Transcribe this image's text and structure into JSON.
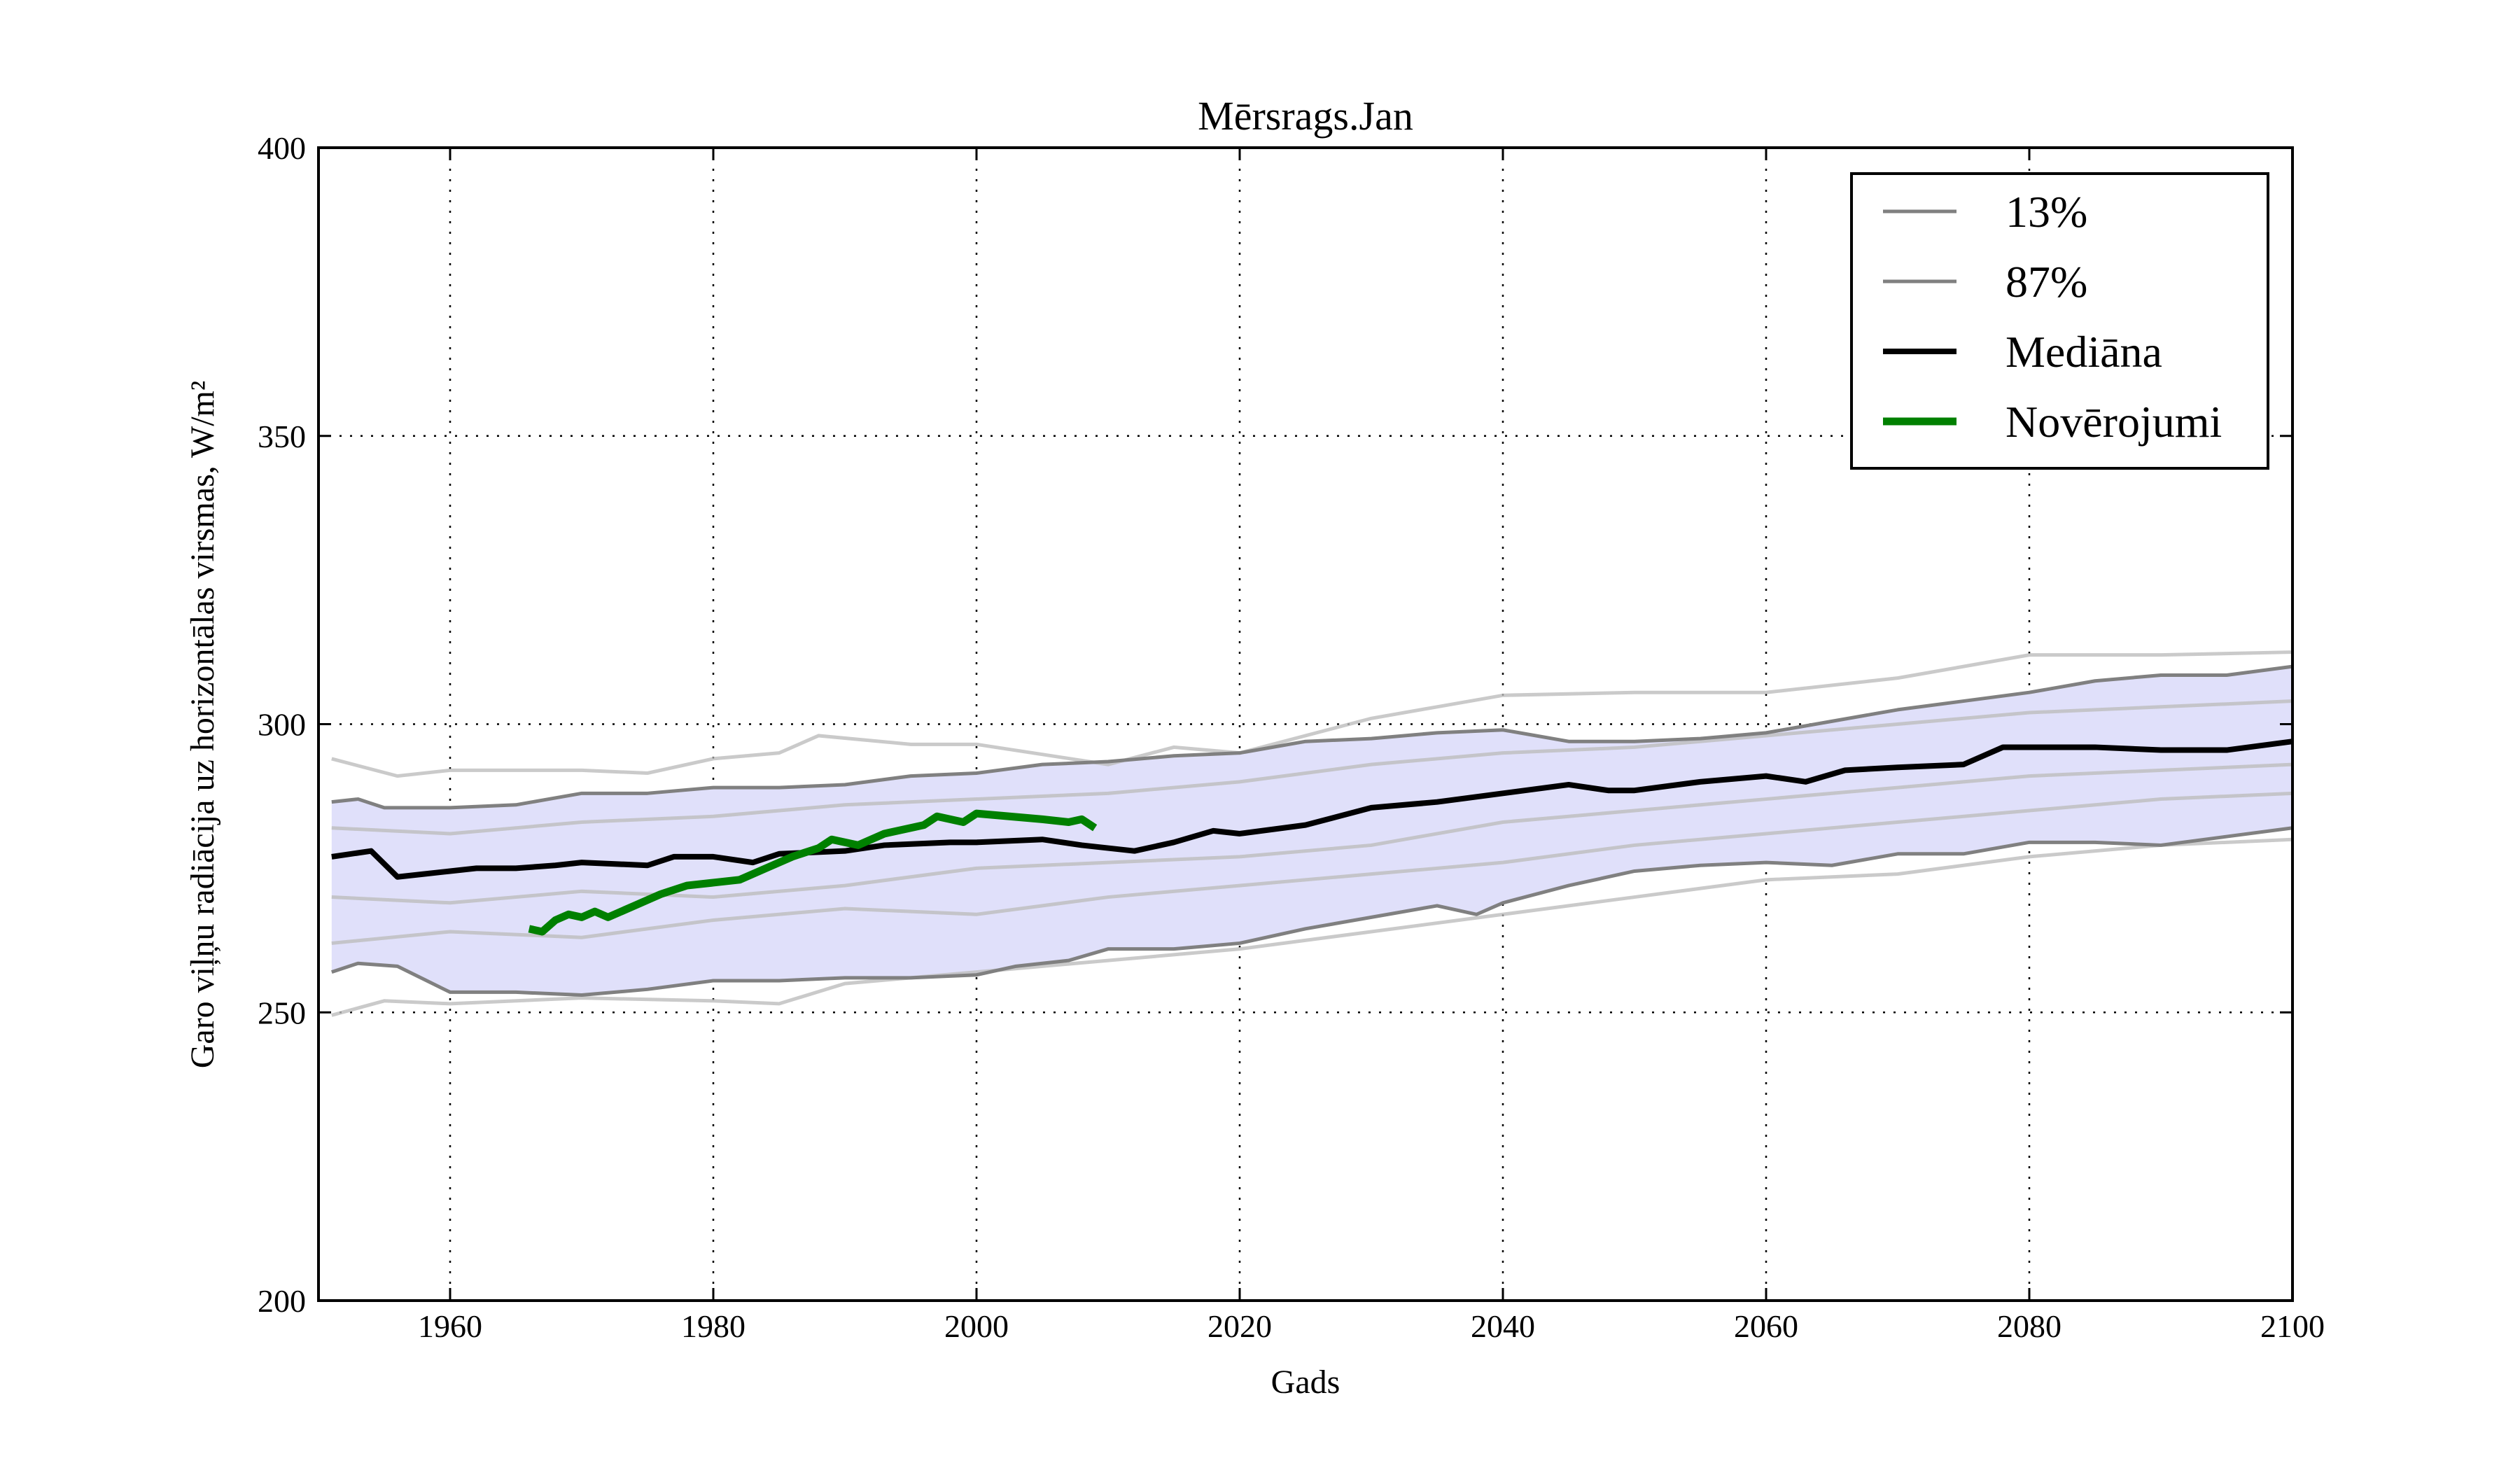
{
  "chart_data": {
    "type": "line",
    "title": "Mērsrags.Jan",
    "xlabel": "Gads",
    "ylabel": "Garo viļņu radiācija uz horizontālas virsmas, W/m²",
    "xlim": [
      1950,
      2100
    ],
    "ylim": [
      200,
      400
    ],
    "xticks": [
      1960,
      1980,
      2000,
      2020,
      2040,
      2060,
      2080,
      2100
    ],
    "yticks": [
      200,
      250,
      300,
      350,
      400
    ],
    "grid": true,
    "legend_position": "top-right",
    "colors": {
      "band": "#e0e0fa",
      "percentile": "#808080",
      "ensemble": "#bdbdbd",
      "median": "#000000",
      "observations": "#008000"
    },
    "legend": [
      {
        "label": "13%",
        "series": "p13"
      },
      {
        "label": "87%",
        "series": "p87"
      },
      {
        "label": "Mediāna",
        "series": "median"
      },
      {
        "label": "Novērojumi",
        "series": "obs"
      }
    ],
    "series": [
      {
        "id": "p13",
        "name": "13%",
        "x": [
          1951,
          1953,
          1956,
          1960,
          1965,
          1970,
          1975,
          1980,
          1985,
          1990,
          1995,
          2000,
          2003,
          2007,
          2010,
          2015,
          2020,
          2025,
          2030,
          2035,
          2038,
          2040,
          2045,
          2050,
          2055,
          2060,
          2065,
          2070,
          2075,
          2080,
          2085,
          2090,
          2095,
          2100
        ],
        "y": [
          257,
          258.5,
          258,
          253.5,
          253.5,
          253,
          254,
          255.5,
          255.5,
          256,
          256,
          256.5,
          258,
          259,
          261,
          261,
          262,
          264.5,
          266.5,
          268.5,
          267,
          269,
          272,
          274.5,
          275.5,
          276,
          275.5,
          277.5,
          277.5,
          279.5,
          279.5,
          279,
          280.5,
          282
        ]
      },
      {
        "id": "p87",
        "name": "87%",
        "x": [
          1951,
          1953,
          1955,
          1960,
          1965,
          1970,
          1975,
          1980,
          1985,
          1990,
          1995,
          2000,
          2005,
          2010,
          2015,
          2020,
          2025,
          2030,
          2035,
          2040,
          2045,
          2050,
          2055,
          2060,
          2065,
          2070,
          2075,
          2080,
          2085,
          2090,
          2095,
          2100
        ],
        "y": [
          286.5,
          287,
          285.5,
          285.5,
          286,
          288,
          288,
          289,
          289,
          289.5,
          291,
          291.5,
          293,
          293.5,
          294.5,
          295,
          297,
          297.5,
          298.5,
          299,
          297,
          297,
          297.5,
          298.5,
          300.5,
          302.5,
          304,
          305.5,
          307.5,
          308.5,
          308.5,
          310
        ]
      },
      {
        "id": "median",
        "name": "Mediāna",
        "x": [
          1951,
          1954,
          1956,
          1958,
          1960,
          1962,
          1965,
          1968,
          1970,
          1975,
          1977,
          1980,
          1983,
          1985,
          1990,
          1993,
          1998,
          2000,
          2005,
          2008,
          2010,
          2012,
          2015,
          2018,
          2020,
          2025,
          2030,
          2035,
          2040,
          2045,
          2048,
          2050,
          2055,
          2060,
          2063,
          2066,
          2070,
          2075,
          2078,
          2080,
          2085,
          2090,
          2095,
          2100
        ],
        "y": [
          277,
          278,
          273.5,
          274,
          274.5,
          275,
          275,
          275.5,
          276,
          275.5,
          277,
          277,
          276,
          277.5,
          278,
          279,
          279.5,
          279.5,
          280,
          279,
          278.5,
          278,
          279.5,
          281.5,
          281,
          282.5,
          285.5,
          286.5,
          288,
          289.5,
          288.5,
          288.5,
          290,
          291,
          290,
          292,
          292.5,
          293,
          296,
          296,
          296,
          295.5,
          295.5,
          297
        ]
      },
      {
        "id": "obs",
        "name": "Novērojumi",
        "x": [
          1966,
          1967,
          1968,
          1969,
          1970,
          1971,
          1972,
          1974,
          1976,
          1978,
          1980,
          1982,
          1984,
          1986,
          1988,
          1989,
          1991,
          1993,
          1995,
          1996,
          1997,
          1999,
          2000,
          2005,
          2007,
          2008,
          2009
        ],
        "y": [
          264.5,
          264,
          266,
          267,
          266.5,
          267.5,
          266.5,
          268.5,
          270.5,
          272,
          272.5,
          273,
          275,
          277,
          278.5,
          280,
          279,
          281,
          282,
          282.5,
          284,
          283,
          284.5,
          283.5,
          283,
          283.5,
          282
        ]
      },
      {
        "id": "ens1",
        "name": "",
        "x": [
          1951,
          1956,
          1960,
          1970,
          1975,
          1980,
          1985,
          1988,
          1995,
          2000,
          2010,
          2015,
          2020,
          2030,
          2035,
          2040,
          2050,
          2060,
          2070,
          2080,
          2090,
          2100
        ],
        "y": [
          294,
          291,
          292,
          292,
          291.5,
          294,
          295,
          298,
          296.5,
          296.5,
          293,
          296,
          295,
          301,
          303,
          305,
          305.5,
          305.5,
          308,
          312,
          312,
          312.5
        ]
      },
      {
        "id": "ens2",
        "name": "",
        "x": [
          1951,
          1955,
          1960,
          1970,
          1980,
          1985,
          1990,
          2000,
          2010,
          2020,
          2030,
          2040,
          2050,
          2060,
          2070,
          2080,
          2090,
          2100
        ],
        "y": [
          249.5,
          252,
          251.5,
          252.5,
          252,
          251.5,
          255,
          257,
          259,
          261,
          264,
          267,
          270,
          273,
          274,
          277,
          279,
          280
        ]
      },
      {
        "id": "ens3",
        "name": "",
        "x": [
          1951,
          1960,
          1970,
          1980,
          1990,
          2000,
          2010,
          2020,
          2030,
          2040,
          2050,
          2060,
          2070,
          2080,
          2090,
          2100
        ],
        "y": [
          270,
          269,
          271,
          270,
          272,
          275,
          276,
          277,
          279,
          283,
          285,
          287,
          289,
          291,
          292,
          293
        ]
      },
      {
        "id": "ens4",
        "name": "",
        "x": [
          1951,
          1960,
          1970,
          1980,
          1990,
          2000,
          2010,
          2020,
          2030,
          2040,
          2050,
          2060,
          2070,
          2080,
          2090,
          2100
        ],
        "y": [
          282,
          281,
          283,
          284,
          286,
          287,
          288,
          290,
          293,
          295,
          296,
          298,
          300,
          302,
          303,
          304
        ]
      },
      {
        "id": "ens5",
        "name": "",
        "x": [
          1951,
          1960,
          1970,
          1980,
          1990,
          2000,
          2010,
          2020,
          2030,
          2040,
          2050,
          2060,
          2070,
          2080,
          2090,
          2100
        ],
        "y": [
          262,
          264,
          263,
          266,
          268,
          267,
          270,
          272,
          274,
          276,
          279,
          281,
          283,
          285,
          287,
          288
        ]
      }
    ]
  }
}
